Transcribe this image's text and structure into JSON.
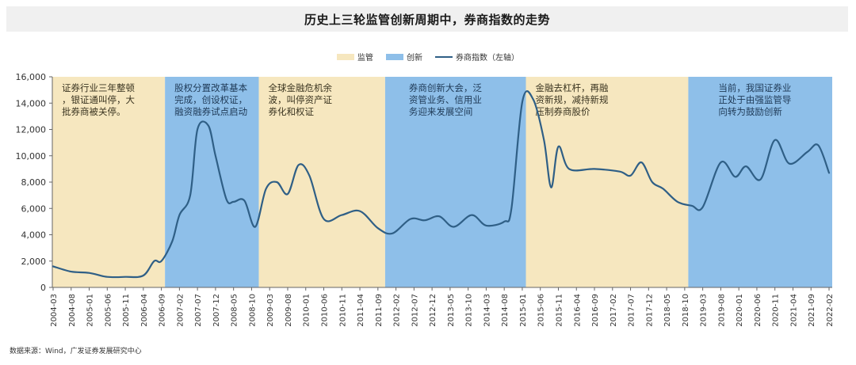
{
  "title": "历史上三轮监管创新周期中，券商指数的走势",
  "legend": [
    {
      "label": "监管",
      "type": "area",
      "color": "#f6e7bf"
    },
    {
      "label": "创新",
      "type": "area",
      "color": "#8ebfe9"
    },
    {
      "label": "券商指数（左轴）",
      "type": "line",
      "color": "#2f5f86"
    }
  ],
  "source": "数据来源：Wind，广发证券发展研究中心",
  "colors": {
    "regulation": "#f6e7bf",
    "innovation": "#8ebfe9",
    "line": "#2f5f86",
    "axis": "#666666"
  },
  "chart_data": {
    "type": "line",
    "title": "历史上三轮监管创新周期中，券商指数的走势",
    "xlabel": "",
    "ylabel": "券商指数（左轴）",
    "ylim": [
      0,
      16000
    ],
    "yticks": [
      0,
      2000,
      4000,
      6000,
      8000,
      10000,
      12000,
      14000,
      16000
    ],
    "ytick_labels": [
      "0",
      "2,000",
      "4,000",
      "6,000",
      "8,000",
      "10,000",
      "12,000",
      "14,000",
      "16,000"
    ],
    "xtick_labels": [
      "2004-03",
      "2004-08",
      "2005-01",
      "2005-06",
      "2005-11",
      "2006-04",
      "2006-09",
      "2007-02",
      "2007-07",
      "2007-12",
      "2008-05",
      "2008-10",
      "2009-03",
      "2009-08",
      "2010-01",
      "2010-06",
      "2010-11",
      "2011-04",
      "2011-09",
      "2012-02",
      "2012-07",
      "2012-12",
      "2013-05",
      "2013-10",
      "2014-03",
      "2014-08",
      "2015-01",
      "2015-06",
      "2015-11",
      "2016-04",
      "2016-09",
      "2017-02",
      "2017-07",
      "2017-12",
      "2018-05",
      "2018-10",
      "2019-03",
      "2019-08",
      "2020-01",
      "2020-06",
      "2020-11",
      "2021-04",
      "2021-09",
      "2022-02"
    ],
    "grid": false,
    "legend_position": "top",
    "periods": [
      {
        "type": "监管",
        "start": "2004-03",
        "end": "2006-10",
        "note": "证券行业三年整顿，银证通叫停，大批券商被关停。"
      },
      {
        "type": "创新",
        "start": "2006-10",
        "end": "2008-12",
        "note": "股权分置改革基本完成，创设权证，融资融券试点启动"
      },
      {
        "type": "监管",
        "start": "2008-12",
        "end": "2011-11",
        "note": "全球金融危机余波，叫停资产证券化和权证"
      },
      {
        "type": "创新",
        "start": "2011-11",
        "end": "2015-02",
        "note": "券商创新大会，泛资管业务、信用业务迎来发展空间"
      },
      {
        "type": "监管",
        "start": "2015-02",
        "end": "2018-11",
        "note": "金融去杠杆，再融资新规，减持新规压制券商股价"
      },
      {
        "type": "创新",
        "start": "2018-11",
        "end": "2022-03",
        "note": "当前，我国证券业正处于由强监管导向转为鼓励创新"
      }
    ],
    "series": [
      {
        "name": "券商指数（左轴）",
        "x": [
          "2004-03",
          "2004-08",
          "2005-01",
          "2005-06",
          "2005-11",
          "2006-04",
          "2006-07",
          "2006-09",
          "2006-12",
          "2007-02",
          "2007-05",
          "2007-07",
          "2007-10",
          "2007-12",
          "2008-03",
          "2008-05",
          "2008-08",
          "2008-11",
          "2009-02",
          "2009-05",
          "2009-08",
          "2009-11",
          "2010-02",
          "2010-06",
          "2010-11",
          "2011-04",
          "2011-09",
          "2012-01",
          "2012-06",
          "2012-10",
          "2013-02",
          "2013-06",
          "2013-11",
          "2014-03",
          "2014-08",
          "2014-10",
          "2015-01",
          "2015-04",
          "2015-07",
          "2015-09",
          "2015-11",
          "2016-02",
          "2016-09",
          "2017-04",
          "2017-07",
          "2017-10",
          "2018-01",
          "2018-04",
          "2018-08",
          "2018-12",
          "2019-03",
          "2019-08",
          "2019-12",
          "2020-03",
          "2020-07",
          "2020-11",
          "2021-03",
          "2021-08",
          "2021-11",
          "2022-02"
        ],
        "values": [
          1600,
          1200,
          1100,
          800,
          800,
          900,
          2000,
          2000,
          3500,
          5500,
          7000,
          12000,
          12300,
          10000,
          6700,
          6500,
          6600,
          4600,
          7500,
          8000,
          7100,
          9300,
          8500,
          5200,
          5500,
          5800,
          4500,
          4100,
          5200,
          5100,
          5400,
          4600,
          5500,
          4700,
          5000,
          6000,
          14100,
          14300,
          11200,
          7600,
          10700,
          9000,
          9000,
          8800,
          8500,
          9500,
          8000,
          7500,
          6500,
          6200,
          6100,
          9500,
          8400,
          9200,
          8200,
          11200,
          9400,
          10300,
          10800,
          8700
        ]
      }
    ]
  }
}
